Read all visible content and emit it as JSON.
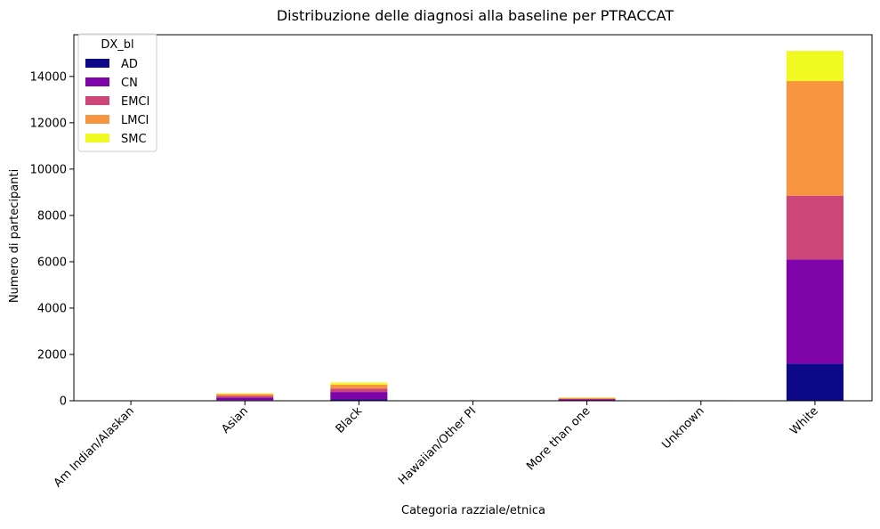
{
  "chart_data": {
    "type": "bar",
    "stacked": true,
    "title": "Distribuzione delle diagnosi alla baseline per PTRACCAT",
    "xlabel": "Categoria razziale/etnica",
    "ylabel": "Numero di partecipanti",
    "categories": [
      "Am Indian/Alaskan",
      "Asian",
      "Black",
      "Hawaiian/Other PI",
      "More than one",
      "Unknown",
      "White"
    ],
    "ylim": [
      0,
      15800
    ],
    "yticks": [
      0,
      2000,
      4000,
      6000,
      8000,
      10000,
      12000,
      14000
    ],
    "grid": false,
    "legend": {
      "title": "DX_bl",
      "placement": "upper-left"
    },
    "series": [
      {
        "name": "AD",
        "color": "#0d0887",
        "values": [
          3,
          30,
          60,
          0,
          12,
          2,
          1600
        ]
      },
      {
        "name": "CN",
        "color": "#7e03a8",
        "values": [
          5,
          110,
          320,
          4,
          45,
          8,
          4500
        ]
      },
      {
        "name": "EMCI",
        "color": "#cc4778",
        "values": [
          4,
          70,
          150,
          3,
          30,
          5,
          2750
        ]
      },
      {
        "name": "LMCI",
        "color": "#f89540",
        "values": [
          6,
          80,
          170,
          3,
          40,
          6,
          4950
        ]
      },
      {
        "name": "SMC",
        "color": "#f0f921",
        "values": [
          1,
          30,
          90,
          0,
          18,
          1,
          1300
        ]
      }
    ]
  }
}
